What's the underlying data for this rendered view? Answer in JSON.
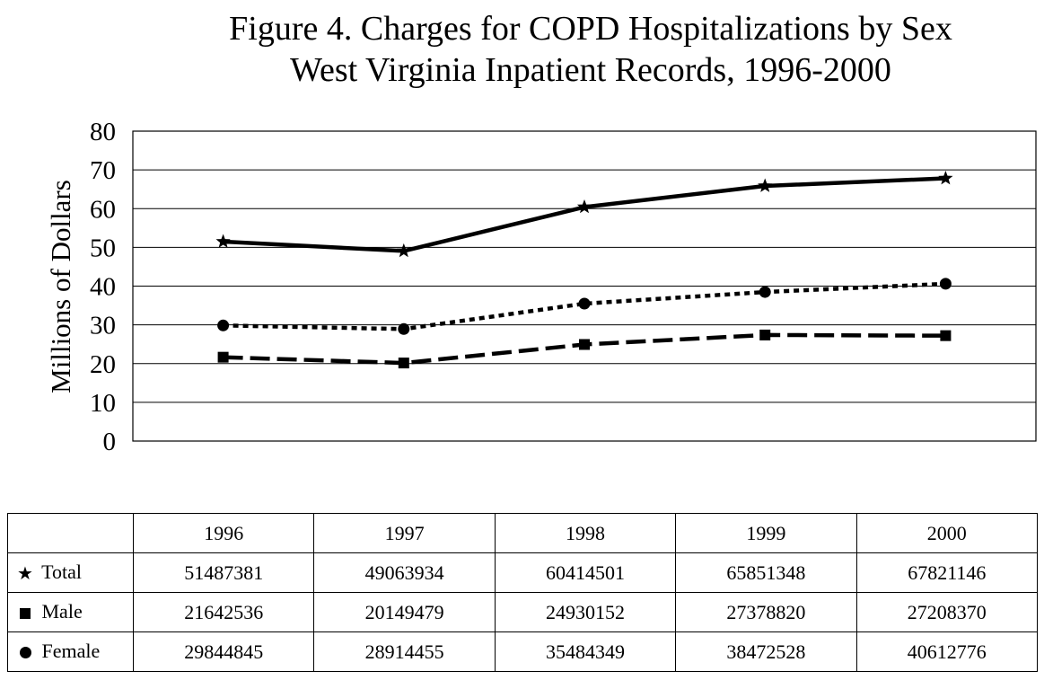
{
  "title_line1": "Figure 4.  Charges for COPD Hospitalizations by Sex",
  "title_line2": "West Virginia Inpatient Records, 1996-2000",
  "chart_data": {
    "type": "line",
    "title": "Figure 4.  Charges for COPD Hospitalizations by Sex West Virginia Inpatient Records, 1996-2000",
    "xlabel": "",
    "ylabel": "Millions of Dollars",
    "categories": [
      "1996",
      "1997",
      "1998",
      "1999",
      "2000"
    ],
    "ylim": [
      0,
      80
    ],
    "yticks": [
      "0",
      "10",
      "20",
      "30",
      "40",
      "50",
      "60",
      "70",
      "80"
    ],
    "grid": "horizontal",
    "series": [
      {
        "name": "Total",
        "marker": "star",
        "style": "solid",
        "values": [
          51.487381,
          49.063934,
          60.414501,
          65.851348,
          67.821146
        ]
      },
      {
        "name": "Male",
        "marker": "square",
        "style": "dashed",
        "values": [
          21.642536,
          20.149479,
          24.930152,
          27.37882,
          27.20837
        ]
      },
      {
        "name": "Female",
        "marker": "circle",
        "style": "dotted",
        "values": [
          29.844845,
          28.914455,
          35.484349,
          38.472528,
          40.612776
        ]
      }
    ]
  },
  "table": {
    "header": [
      "",
      "1996",
      "1997",
      "1998",
      "1999",
      "2000"
    ],
    "rows": [
      {
        "label": "Total",
        "marker": "star",
        "values": [
          "51487381",
          "49063934",
          "60414501",
          "65851348",
          "67821146"
        ]
      },
      {
        "label": "Male",
        "marker": "square",
        "values": [
          "21642536",
          "20149479",
          "24930152",
          "27378820",
          "27208370"
        ]
      },
      {
        "label": "Female",
        "marker": "circle",
        "values": [
          "29844845",
          "28914455",
          "35484349",
          "38472528",
          "40612776"
        ]
      }
    ]
  },
  "colors": {
    "line": "#000000",
    "background": "#ffffff"
  }
}
